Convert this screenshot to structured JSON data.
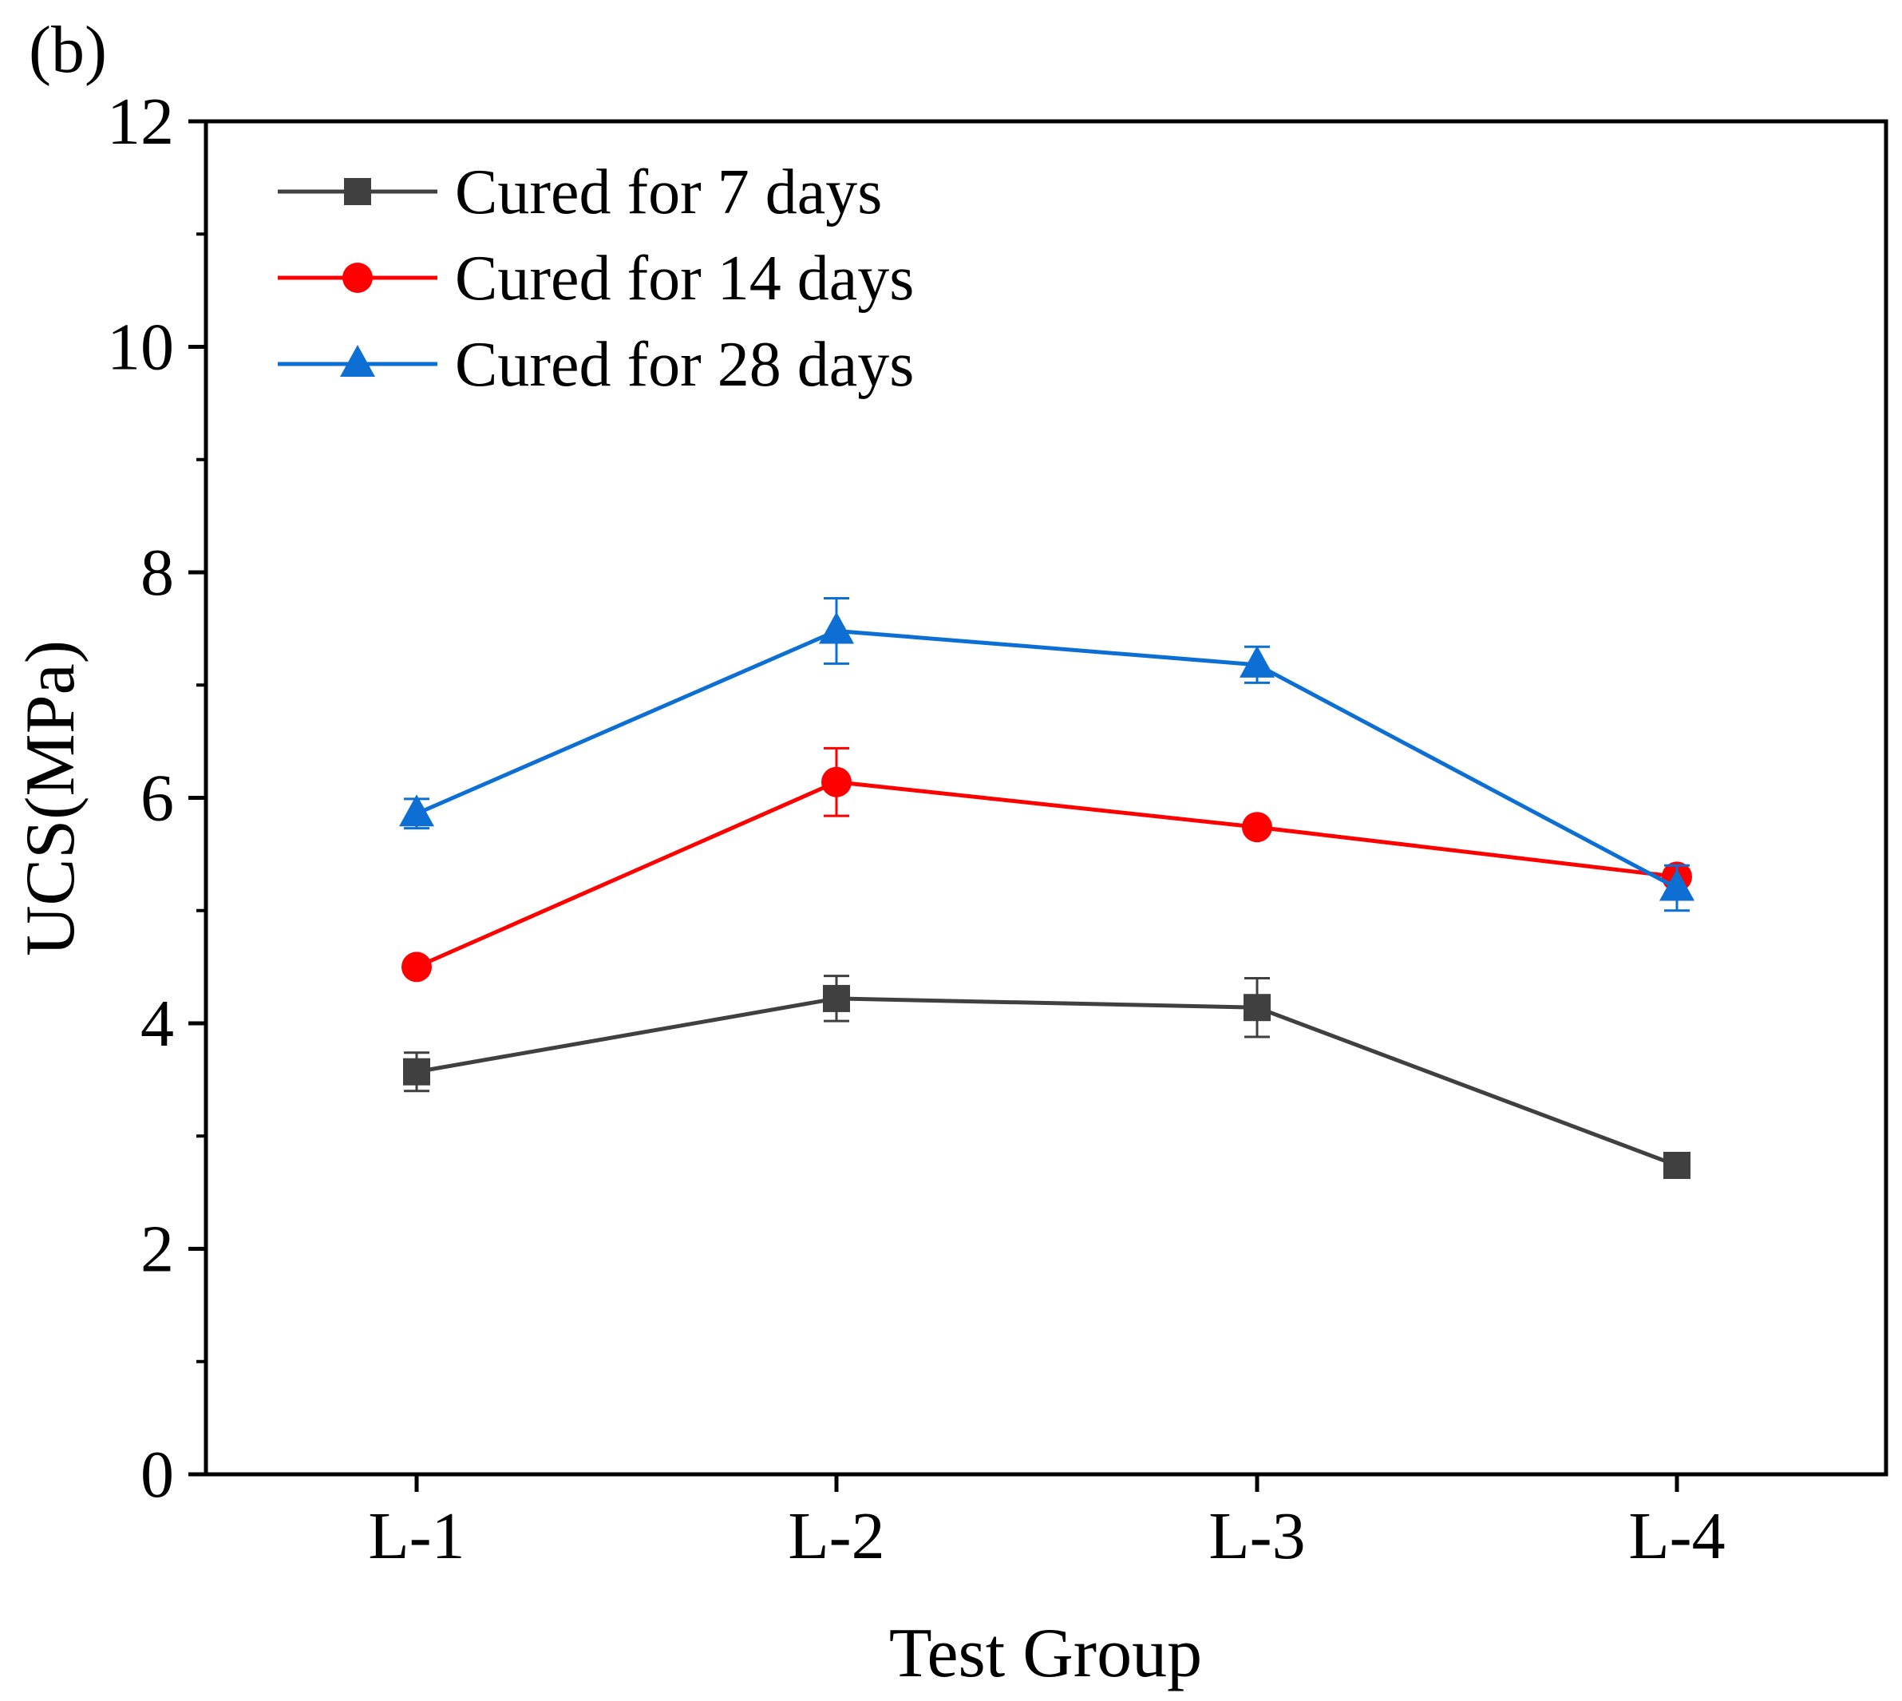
{
  "panel_label": "(b)",
  "chart_data": {
    "type": "line",
    "title": "",
    "xlabel": "Test Group",
    "ylabel": "UCS(MPa)",
    "categories": [
      "L-1",
      "L-2",
      "L-3",
      "L-4"
    ],
    "ylim": [
      0,
      12
    ],
    "yticks": [
      0,
      2,
      4,
      6,
      8,
      10,
      12
    ],
    "yticks_minor": [
      1,
      3,
      5,
      7,
      9,
      11
    ],
    "legend_position": "top-left",
    "grid": false,
    "series": [
      {
        "name": "Cured for 7 days",
        "color": "#404040",
        "marker": "square",
        "values": [
          3.57,
          4.22,
          4.14,
          2.74
        ],
        "errors": [
          0.17,
          0.2,
          0.26,
          0.05
        ]
      },
      {
        "name": "Cured for 14 days",
        "color": "#ff0000",
        "marker": "circle",
        "values": [
          4.5,
          6.14,
          5.74,
          5.3
        ],
        "errors": [
          0.05,
          0.3,
          0.05,
          0.06
        ]
      },
      {
        "name": "Cured for 28 days",
        "color": "#0d6fd4",
        "marker": "triangle",
        "values": [
          5.86,
          7.48,
          7.18,
          5.2
        ],
        "errors": [
          0.13,
          0.29,
          0.16,
          0.2
        ]
      }
    ]
  }
}
